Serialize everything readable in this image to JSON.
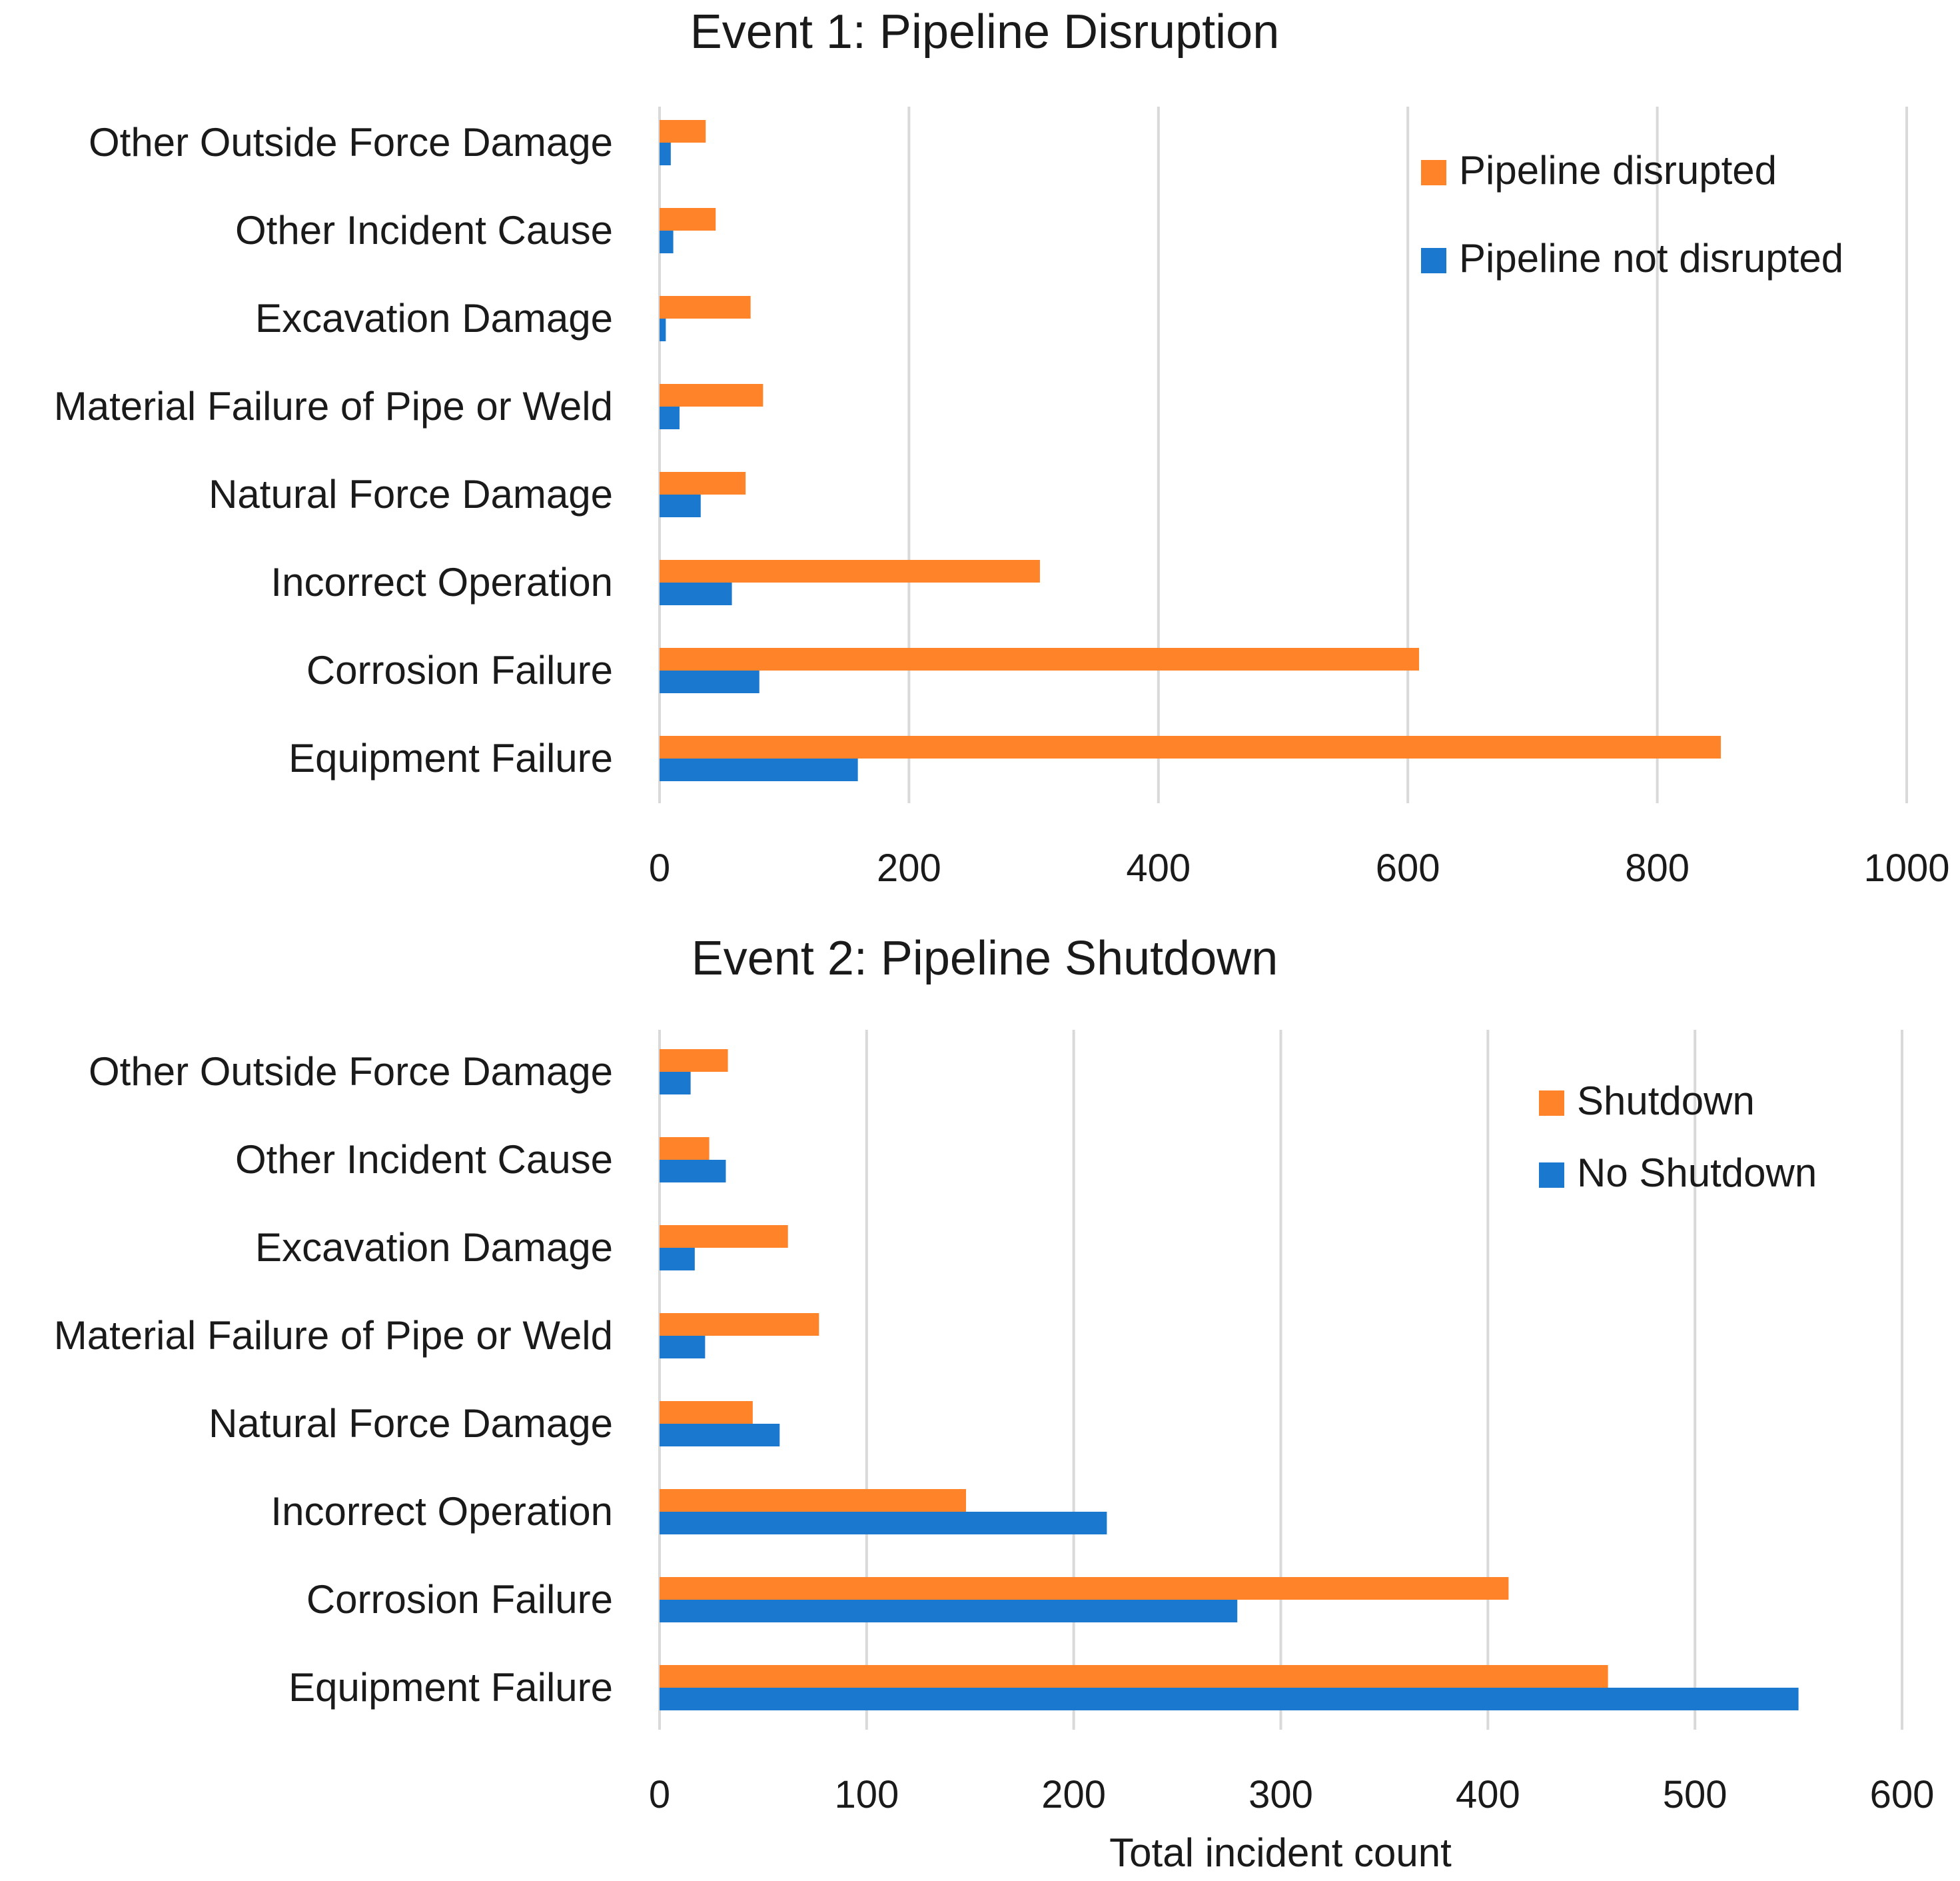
{
  "chart_data": [
    {
      "type": "bar",
      "orientation": "horizontal",
      "title": "Event 1: Pipeline Disruption",
      "xlabel": "",
      "ylabel": "",
      "xlim": [
        0,
        1000
      ],
      "xticks": [
        "0",
        "200",
        "400",
        "600",
        "800",
        "1000"
      ],
      "grid": true,
      "legend_position": "top-right",
      "categories": [
        "Other Outside Force Damage",
        "Other Incident Cause",
        "Excavation Damage",
        "Material Failure of Pipe or Weld",
        "Natural Force Damage",
        "Incorrect Operation",
        "Corrosion Failure",
        "Equipment Failure"
      ],
      "series": [
        {
          "name": "Pipeline disrupted",
          "color": "#ff8329",
          "values": [
            37,
            45,
            73,
            83,
            69,
            305,
            609,
            851
          ]
        },
        {
          "name": "Pipeline not disrupted",
          "color": "#1a78cf",
          "values": [
            9,
            11,
            5,
            16,
            33,
            58,
            80,
            159
          ]
        }
      ]
    },
    {
      "type": "bar",
      "orientation": "horizontal",
      "title": "Event 2: Pipeline Shutdown",
      "xlabel": "Total incident count",
      "ylabel": "",
      "xlim": [
        0,
        600
      ],
      "xticks": [
        "0",
        "100",
        "200",
        "300",
        "400",
        "500",
        "600"
      ],
      "grid": true,
      "legend_position": "top-right",
      "categories": [
        "Other Outside Force Damage",
        "Other Incident Cause",
        "Excavation Damage",
        "Material Failure of Pipe or Weld",
        "Natural Force Damage",
        "Incorrect Operation",
        "Corrosion Failure",
        "Equipment Failure"
      ],
      "series": [
        {
          "name": "Shutdown",
          "color": "#ff8329",
          "values": [
            33,
            24,
            62,
            77,
            45,
            148,
            410,
            458
          ]
        },
        {
          "name": "No Shutdown",
          "color": "#1a78cf",
          "values": [
            15,
            32,
            17,
            22,
            58,
            216,
            279,
            550
          ]
        }
      ]
    }
  ]
}
